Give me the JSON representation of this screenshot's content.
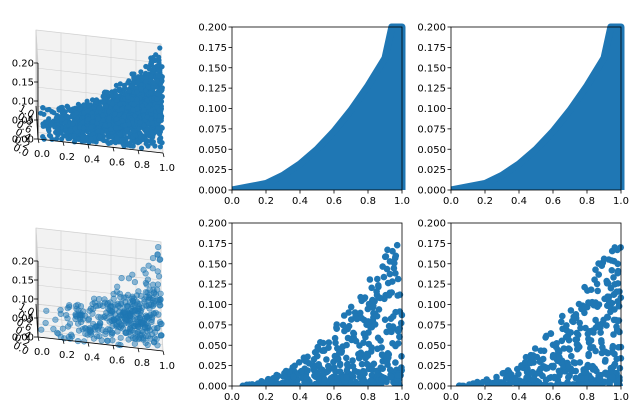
{
  "figure": {
    "accent_color": "#1f77b4",
    "background": "#ffffff"
  },
  "chart_data": [
    {
      "type": "scatter",
      "view": "3d",
      "panel": "top-left",
      "xlim": [
        0,
        1
      ],
      "ylim": [
        0,
        1
      ],
      "zlim": [
        0,
        0.2
      ],
      "x_ticks": [
        "0.0",
        "0.2",
        "0.4",
        "0.6",
        "0.8",
        "1.0"
      ],
      "y_ticks": [
        "0.0",
        "0.2",
        "0.4",
        "0.6",
        "0.8",
        "1.0"
      ],
      "z_ticks": [
        "0.00",
        "0.05",
        "0.10",
        "0.15",
        "0.20"
      ],
      "grid": true,
      "density": "dense",
      "relationship": "z approx 0.2 * x^2",
      "marker_opacity": 1.0
    },
    {
      "type": "scatter",
      "panel": "top-middle",
      "xlim": [
        0,
        1
      ],
      "ylim": [
        0,
        0.2
      ],
      "x_ticks": [
        "0.0",
        "0.2",
        "0.4",
        "0.6",
        "0.8",
        "1.0"
      ],
      "y_ticks": [
        "0.000",
        "0.025",
        "0.050",
        "0.075",
        "0.100",
        "0.125",
        "0.150",
        "0.175",
        "0.200"
      ],
      "grid": false,
      "density": "dense",
      "envelope": {
        "x": [
          0.0,
          0.2,
          0.3,
          0.4,
          0.5,
          0.6,
          0.7,
          0.8,
          0.9,
          0.94,
          1.0
        ],
        "y": [
          0.0,
          0.008,
          0.018,
          0.032,
          0.05,
          0.072,
          0.098,
          0.128,
          0.162,
          0.2,
          0.2
        ]
      }
    },
    {
      "type": "scatter",
      "panel": "top-right",
      "xlim": [
        0,
        1
      ],
      "ylim": [
        0,
        0.2
      ],
      "x_ticks": [
        "0.0",
        "0.2",
        "0.4",
        "0.6",
        "0.8",
        "1.0"
      ],
      "y_ticks": [
        "0.000",
        "0.025",
        "0.050",
        "0.075",
        "0.100",
        "0.125",
        "0.150",
        "0.175",
        "0.200"
      ],
      "grid": false,
      "density": "dense",
      "envelope": {
        "x": [
          0.0,
          0.2,
          0.3,
          0.4,
          0.5,
          0.6,
          0.7,
          0.8,
          0.9,
          0.94,
          1.0
        ],
        "y": [
          0.0,
          0.008,
          0.018,
          0.032,
          0.05,
          0.072,
          0.098,
          0.128,
          0.162,
          0.2,
          0.2
        ]
      }
    },
    {
      "type": "scatter",
      "view": "3d",
      "panel": "bottom-left",
      "xlim": [
        0,
        1
      ],
      "ylim": [
        0,
        1
      ],
      "zlim": [
        0,
        0.2
      ],
      "x_ticks": [
        "0.0",
        "0.2",
        "0.4",
        "0.6",
        "0.8",
        "1.0"
      ],
      "y_ticks": [
        "0.0",
        "0.2",
        "0.4",
        "0.6",
        "0.8",
        "1.0"
      ],
      "z_ticks": [
        "0.00",
        "0.05",
        "0.10",
        "0.15",
        "0.20"
      ],
      "grid": true,
      "density": "sparse",
      "relationship": "z approx 0.2 * x^2",
      "marker_opacity": 0.5
    },
    {
      "type": "scatter",
      "panel": "bottom-middle",
      "xlim": [
        0,
        1
      ],
      "ylim": [
        0,
        0.2
      ],
      "x_ticks": [
        "0.0",
        "0.2",
        "0.4",
        "0.6",
        "0.8",
        "1.0"
      ],
      "y_ticks": [
        "0.000",
        "0.025",
        "0.050",
        "0.075",
        "0.100",
        "0.125",
        "0.150",
        "0.175",
        "0.200"
      ],
      "grid": false,
      "density": "sparse",
      "points_seed": 7
    },
    {
      "type": "scatter",
      "panel": "bottom-right",
      "xlim": [
        0,
        1
      ],
      "ylim": [
        0,
        0.2
      ],
      "x_ticks": [
        "0.0",
        "0.2",
        "0.4",
        "0.6",
        "0.8",
        "1.0"
      ],
      "y_ticks": [
        "0.000",
        "0.025",
        "0.050",
        "0.075",
        "0.100",
        "0.125",
        "0.150",
        "0.175",
        "0.200"
      ],
      "grid": false,
      "density": "sparse",
      "points_seed": 13
    }
  ]
}
